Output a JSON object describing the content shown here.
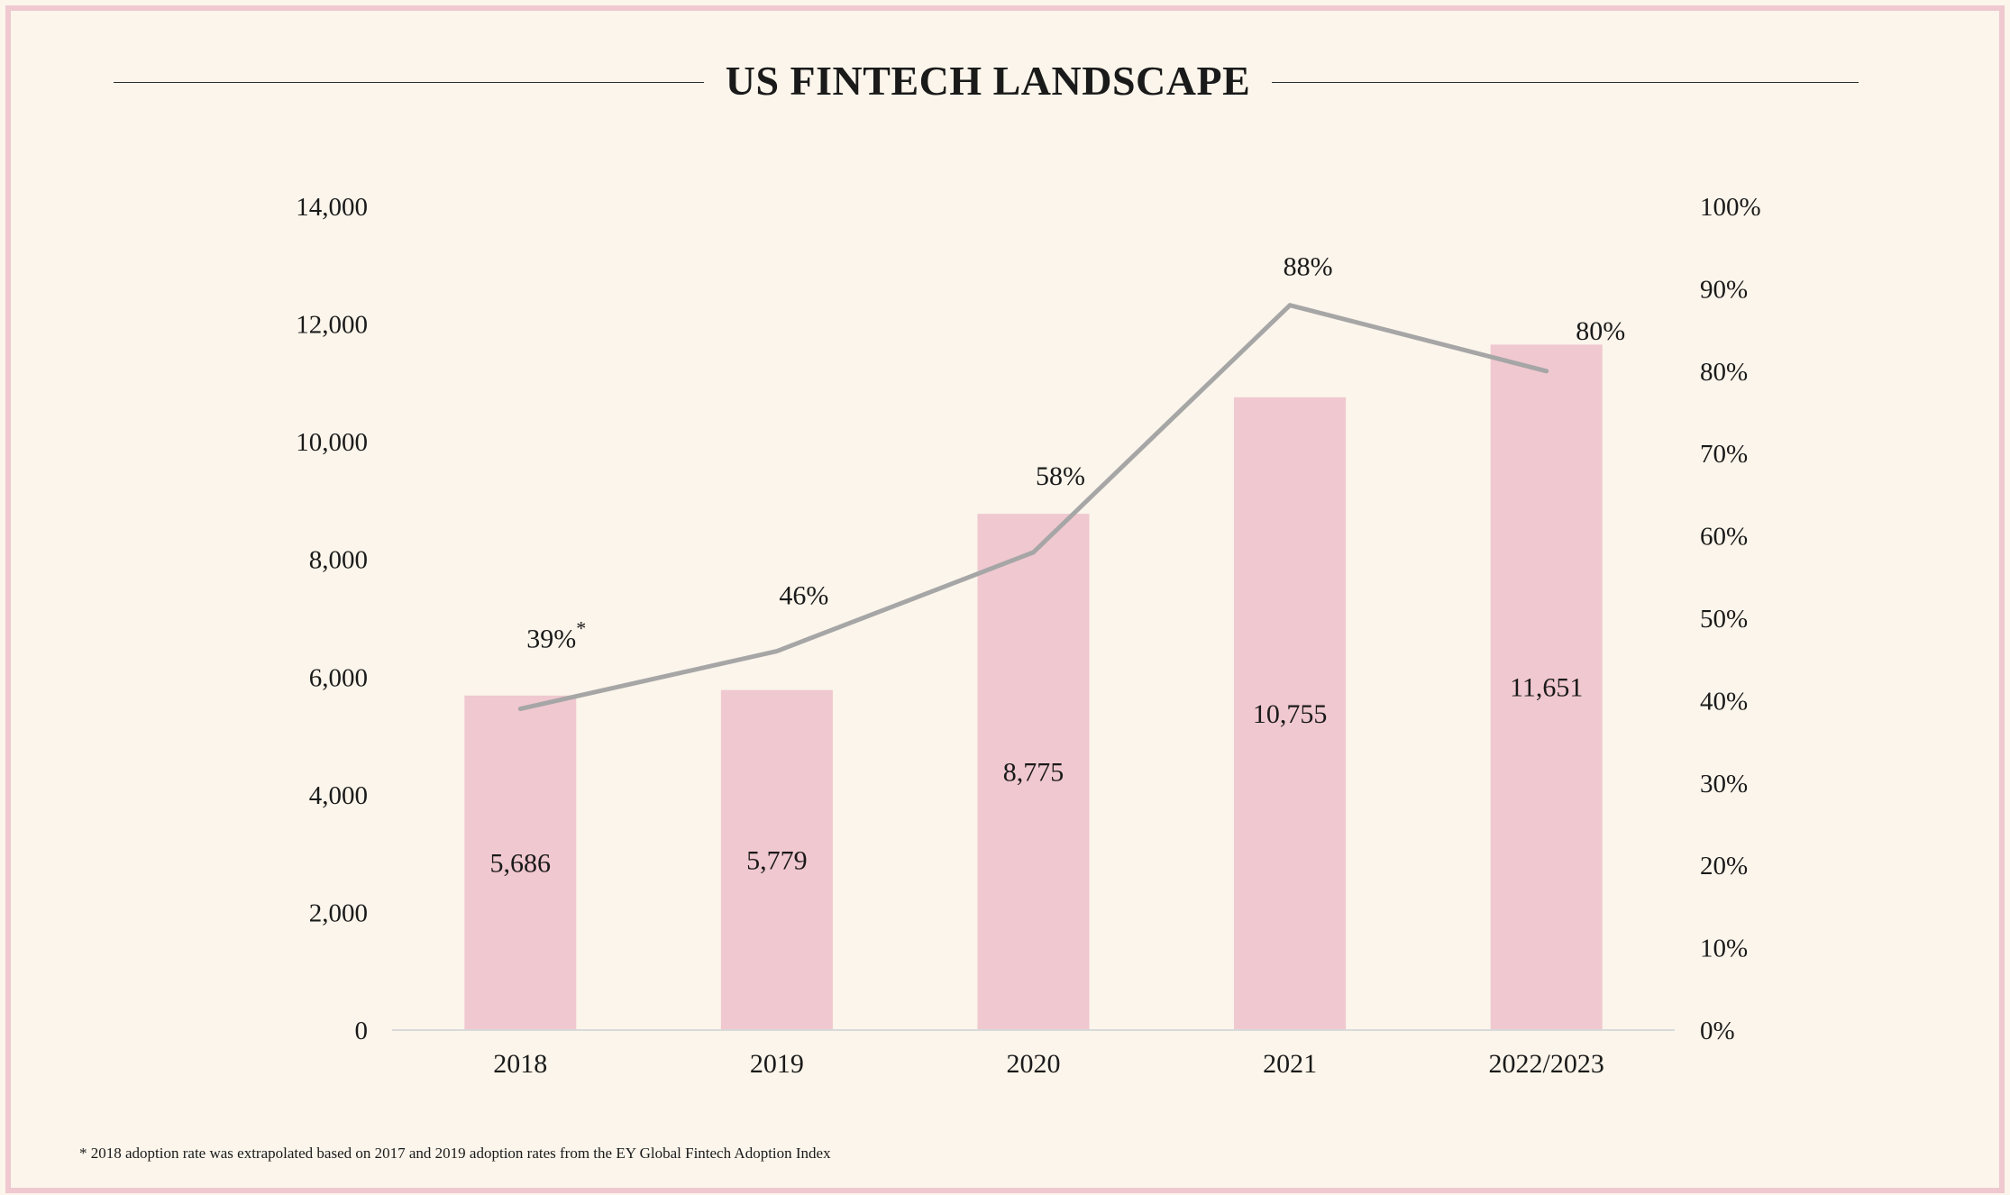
{
  "title": "US FINTECH LANDSCAPE",
  "footnote": "* 2018 adoption rate was extrapolated based on 2017 and 2019 adoption rates from the EY Global Fintech Adoption Index",
  "colors": {
    "background": "#fbf5eb",
    "frame": "#efc8d0",
    "bar": "#f0c8d0",
    "line": "#a6a6a6",
    "axis": "#d9d9d9"
  },
  "chart_data": {
    "type": "bar+line",
    "categories": [
      "2018",
      "2019",
      "2020",
      "2021",
      "2022/2023"
    ],
    "series": [
      {
        "type": "bar",
        "axis": "left",
        "values": [
          5686,
          5779,
          8775,
          10755,
          11651
        ],
        "labels": [
          "5,686",
          "5,779",
          "8,775",
          "10,755",
          "11,651"
        ]
      },
      {
        "type": "line",
        "axis": "right",
        "values": [
          39,
          46,
          58,
          88,
          80
        ],
        "labels": [
          "39%",
          "46%",
          "58%",
          "88%",
          "80%"
        ],
        "label_notes": [
          "*",
          "",
          "",
          "",
          ""
        ]
      }
    ],
    "y_left": {
      "range": [
        0,
        14000
      ],
      "ticks": [
        "0",
        "2,000",
        "4,000",
        "6,000",
        "8,000",
        "10,000",
        "12,000",
        "14,000"
      ]
    },
    "y_right": {
      "range": [
        0,
        100
      ],
      "ticks": [
        "0%",
        "10%",
        "20%",
        "30%",
        "40%",
        "50%",
        "60%",
        "70%",
        "80%",
        "90%",
        "100%"
      ]
    },
    "grid": false,
    "legend": "none"
  }
}
